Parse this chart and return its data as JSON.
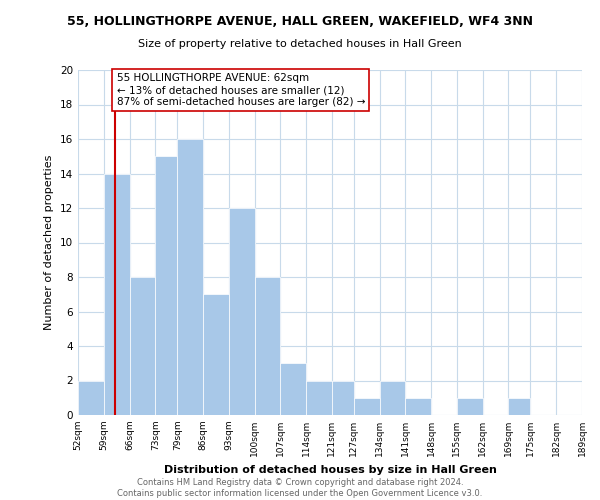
{
  "title_line1": "55, HOLLINGTHORPE AVENUE, HALL GREEN, WAKEFIELD, WF4 3NN",
  "title_line2": "Size of property relative to detached houses in Hall Green",
  "xlabel": "Distribution of detached houses by size in Hall Green",
  "ylabel": "Number of detached properties",
  "bins": [
    52,
    59,
    66,
    73,
    79,
    86,
    93,
    100,
    107,
    114,
    121,
    127,
    134,
    141,
    148,
    155,
    162,
    169,
    175,
    182,
    189
  ],
  "counts": [
    2,
    14,
    8,
    15,
    16,
    7,
    12,
    8,
    3,
    2,
    2,
    1,
    2,
    1,
    0,
    1,
    0,
    1,
    0,
    0
  ],
  "bar_color": "#a8c8e8",
  "property_line_x": 62,
  "property_line_color": "#cc0000",
  "annotation_text": "55 HOLLINGTHORPE AVENUE: 62sqm\n← 13% of detached houses are smaller (12)\n87% of semi-detached houses are larger (82) →",
  "annotation_box_color": "#ffffff",
  "annotation_box_edge_color": "#cc0000",
  "ylim": [
    0,
    20
  ],
  "yticks": [
    0,
    2,
    4,
    6,
    8,
    10,
    12,
    14,
    16,
    18,
    20
  ],
  "tick_labels": [
    "52sqm",
    "59sqm",
    "66sqm",
    "73sqm",
    "79sqm",
    "86sqm",
    "93sqm",
    "100sqm",
    "107sqm",
    "114sqm",
    "121sqm",
    "127sqm",
    "134sqm",
    "141sqm",
    "148sqm",
    "155sqm",
    "162sqm",
    "169sqm",
    "175sqm",
    "182sqm",
    "189sqm"
  ],
  "footer_line1": "Contains HM Land Registry data © Crown copyright and database right 2024.",
  "footer_line2": "Contains public sector information licensed under the Open Government Licence v3.0.",
  "grid_color": "#c8daea",
  "background_color": "#ffffff"
}
